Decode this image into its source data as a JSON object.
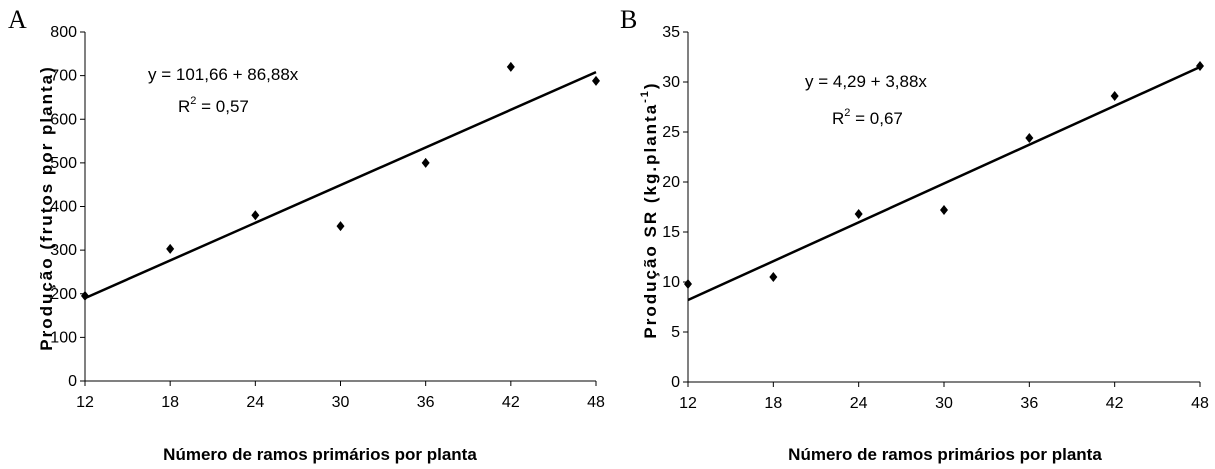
{
  "chart_data": [
    {
      "type": "scatter",
      "panel_label": "A",
      "title": "",
      "xlabel": "Número de ramos primários por planta",
      "ylabel": "Produção (frutos por planta)",
      "xlim": [
        12,
        48
      ],
      "ylim": [
        0,
        800
      ],
      "xticks": [
        12,
        18,
        24,
        30,
        36,
        42,
        48
      ],
      "yticks": [
        0,
        100,
        200,
        300,
        400,
        500,
        600,
        700,
        800
      ],
      "x": [
        12,
        18,
        24,
        30,
        36,
        42,
        48
      ],
      "y": [
        195,
        303,
        380,
        355,
        500,
        720,
        688
      ],
      "equation": "y = 101,66 + 86,88x",
      "r2_label": "R",
      "r2_sup": "2",
      "r2_value": " = 0,57",
      "trend_line": {
        "x": [
          12,
          48
        ],
        "y": [
          190,
          708
        ]
      },
      "grid": false,
      "legend": "none"
    },
    {
      "type": "scatter",
      "panel_label": "B",
      "title": "",
      "xlabel": "Número de ramos primários por planta",
      "ylabel": "Produção SR (kg.planta",
      "ylabel_sup": "-1",
      "ylabel_close": ")",
      "xlim": [
        12,
        48
      ],
      "ylim": [
        0,
        35
      ],
      "xticks": [
        12,
        18,
        24,
        30,
        36,
        42,
        48
      ],
      "yticks": [
        0,
        5,
        10,
        15,
        20,
        25,
        30,
        35
      ],
      "x": [
        12,
        18,
        24,
        30,
        36,
        42,
        48
      ],
      "y": [
        9.8,
        10.5,
        16.8,
        17.2,
        24.4,
        28.6,
        31.6
      ],
      "equation": "y = 4,29 + 3,88x",
      "r2_label": "R",
      "r2_sup": "2",
      "r2_value": " = 0,67",
      "trend_line": {
        "x": [
          12,
          48
        ],
        "y": [
          8.2,
          31.5
        ]
      },
      "grid": false,
      "legend": "none"
    }
  ],
  "colors": {
    "marker": "#000000",
    "line": "#000000",
    "axis": "#000000"
  }
}
